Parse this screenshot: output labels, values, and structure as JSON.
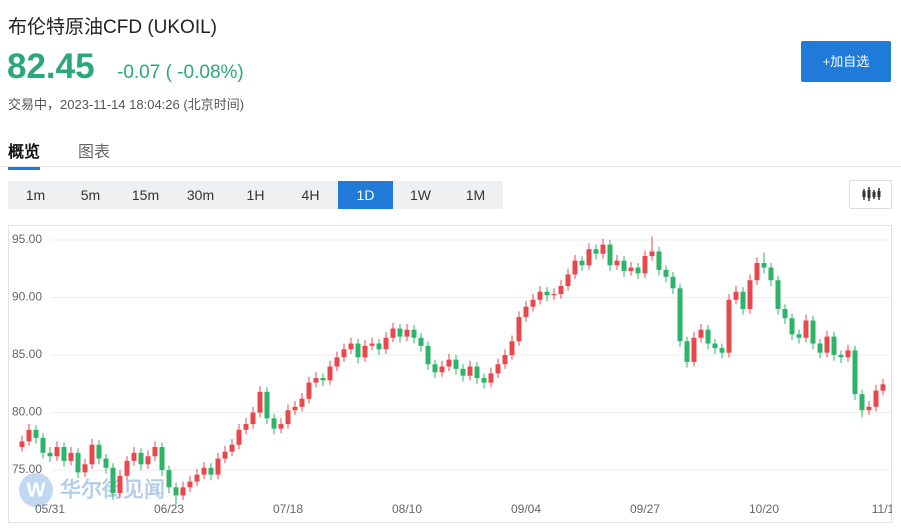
{
  "header": {
    "title": "布伦特原油CFD  (UKOIL)",
    "price": "82.45",
    "change": "-0.07",
    "change_pct": "( -0.08%)",
    "status": "交易中，2023-11-14 18:04:26 (北京时间)",
    "watch_button": "+加自选"
  },
  "tabs": [
    "概览",
    "图表"
  ],
  "periods": [
    "1m",
    "5m",
    "15m",
    "30m",
    "1H",
    "4H",
    "1D",
    "1W",
    "1M"
  ],
  "active_period": 6,
  "watermark": "华尔街见闻",
  "chart_data": {
    "type": "candlestick",
    "up_color": "#e8474c",
    "down_color": "#2db46a",
    "grid": true,
    "ylim": [
      70.4,
      96.3
    ],
    "yticks": [
      {
        "value": 95,
        "label": "95.00"
      },
      {
        "value": 90,
        "label": "90.00"
      },
      {
        "value": 85,
        "label": "85.00"
      },
      {
        "value": 80,
        "label": "80.00"
      },
      {
        "value": 75,
        "label": "75.00"
      }
    ],
    "categories": [
      null,
      null,
      null,
      null,
      "05/31",
      null,
      null,
      null,
      null,
      null,
      null,
      null,
      null,
      null,
      null,
      null,
      null,
      null,
      null,
      null,
      null,
      "06/23",
      null,
      null,
      null,
      null,
      null,
      null,
      null,
      null,
      null,
      null,
      null,
      null,
      null,
      null,
      null,
      null,
      "07/18",
      null,
      null,
      null,
      null,
      null,
      null,
      null,
      null,
      null,
      null,
      null,
      null,
      null,
      null,
      null,
      null,
      "08/10",
      null,
      null,
      null,
      null,
      null,
      null,
      null,
      null,
      null,
      null,
      null,
      null,
      null,
      null,
      null,
      null,
      "09/04",
      null,
      null,
      null,
      null,
      null,
      null,
      null,
      null,
      null,
      null,
      null,
      null,
      null,
      null,
      null,
      null,
      "09/27",
      null,
      null,
      null,
      null,
      null,
      null,
      null,
      null,
      null,
      null,
      null,
      null,
      null,
      null,
      null,
      null,
      "10/20",
      null,
      null,
      null,
      null,
      null,
      null,
      null,
      null,
      null,
      null,
      null,
      null,
      null,
      null,
      null,
      null,
      "11/1"
    ],
    "open": [
      77.0,
      77.5,
      78.5,
      77.8,
      76.5,
      76.2,
      77.0,
      75.8,
      76.5,
      74.8,
      75.5,
      77.2,
      76.0,
      75.2,
      73.0,
      74.5,
      75.8,
      76.5,
      75.5,
      76.2,
      77.0,
      75.0,
      73.5,
      72.8,
      73.5,
      74.0,
      74.6,
      75.2,
      74.6,
      76.0,
      76.6,
      77.2,
      78.5,
      79.0,
      80.0,
      81.8,
      79.5,
      78.6,
      79.0,
      80.2,
      80.5,
      81.2,
      82.6,
      83.0,
      82.8,
      84.0,
      84.8,
      85.5,
      86.0,
      84.8,
      85.8,
      86.0,
      85.5,
      86.5,
      87.3,
      86.6,
      87.2,
      86.5,
      85.8,
      84.2,
      83.5,
      84.0,
      84.6,
      83.8,
      83.2,
      84.0,
      83.0,
      82.6,
      83.4,
      84.2,
      85.0,
      86.2,
      88.3,
      89.2,
      89.8,
      90.5,
      90.2,
      90.3,
      91.0,
      92.0,
      93.2,
      92.8,
      94.2,
      93.8,
      94.6,
      92.8,
      93.2,
      92.3,
      92.6,
      92.1,
      93.6,
      94.0,
      92.4,
      91.8,
      90.8,
      86.2,
      84.4,
      86.5,
      87.2,
      86.0,
      85.6,
      85.2,
      89.8,
      90.5,
      89.0,
      91.5,
      93.0,
      92.6,
      91.5,
      89.0,
      88.2,
      86.8,
      86.5,
      88.0,
      86.0,
      85.2,
      86.6,
      85.0,
      84.8,
      85.4,
      81.6,
      80.2,
      80.5,
      81.9
    ],
    "high": [
      78.0,
      79.0,
      78.9,
      78.2,
      77.0,
      77.5,
      77.4,
      77.0,
      76.9,
      76.0,
      77.7,
      77.6,
      76.4,
      75.6,
      75.0,
      76.2,
      77.0,
      76.9,
      76.7,
      77.5,
      77.4,
      75.4,
      73.9,
      74.0,
      74.5,
      75.1,
      75.7,
      75.6,
      76.5,
      77.1,
      77.7,
      79.0,
      79.5,
      80.5,
      82.3,
      82.2,
      79.9,
      79.5,
      80.7,
      81.0,
      81.7,
      83.1,
      83.5,
      83.4,
      84.5,
      85.3,
      86.0,
      86.5,
      86.4,
      86.3,
      86.5,
      86.4,
      87.0,
      87.8,
      87.7,
      87.7,
      87.6,
      86.9,
      86.2,
      84.6,
      84.5,
      85.1,
      85.0,
      84.2,
      84.5,
      84.4,
      83.4,
      83.9,
      84.7,
      85.5,
      86.7,
      88.8,
      89.7,
      90.3,
      91.0,
      90.9,
      90.8,
      91.5,
      92.5,
      93.7,
      93.6,
      94.7,
      94.6,
      95.1,
      95.0,
      93.7,
      93.6,
      93.1,
      93.0,
      94.1,
      95.3,
      94.4,
      92.8,
      92.2,
      91.2,
      86.6,
      87.0,
      87.7,
      87.6,
      86.4,
      86.0,
      90.3,
      91.0,
      90.9,
      92.0,
      93.5,
      93.9,
      93.0,
      91.9,
      89.4,
      88.6,
      87.2,
      88.5,
      88.4,
      86.4,
      87.1,
      87.0,
      85.4,
      85.9,
      85.8,
      82.0,
      81.0,
      82.4,
      82.9
    ],
    "low": [
      76.6,
      77.1,
      77.3,
      76.0,
      75.7,
      75.8,
      75.3,
      75.4,
      74.3,
      74.4,
      75.1,
      75.5,
      74.7,
      72.4,
      72.6,
      74.1,
      75.4,
      75.0,
      75.1,
      75.8,
      74.5,
      73.0,
      72.0,
      72.4,
      73.1,
      73.6,
      74.2,
      74.1,
      74.2,
      75.6,
      76.2,
      76.8,
      78.1,
      78.6,
      79.6,
      79.0,
      78.1,
      78.2,
      78.6,
      79.8,
      80.1,
      80.8,
      82.2,
      82.3,
      82.4,
      83.6,
      84.4,
      85.1,
      84.3,
      84.4,
      85.4,
      85.0,
      85.1,
      86.1,
      86.1,
      86.2,
      86.0,
      85.3,
      83.7,
      83.0,
      83.1,
      83.6,
      83.3,
      82.7,
      82.8,
      82.5,
      82.1,
      82.2,
      83.0,
      83.8,
      84.6,
      85.8,
      87.9,
      88.8,
      89.4,
      89.7,
      89.8,
      89.9,
      90.6,
      91.6,
      92.3,
      92.4,
      93.3,
      93.4,
      92.3,
      92.4,
      91.8,
      91.9,
      91.6,
      91.7,
      93.2,
      91.9,
      91.3,
      90.3,
      85.7,
      83.9,
      84.0,
      86.1,
      85.5,
      85.1,
      84.7,
      84.8,
      89.4,
      88.5,
      88.6,
      91.1,
      92.1,
      91.0,
      88.5,
      87.7,
      86.3,
      86.0,
      86.1,
      85.5,
      84.7,
      84.8,
      84.5,
      84.3,
      84.4,
      81.1,
      79.6,
      79.8,
      80.1,
      81.5
    ],
    "close": [
      77.5,
      78.5,
      77.8,
      76.5,
      76.2,
      77.0,
      75.8,
      76.5,
      74.8,
      75.5,
      77.2,
      76.0,
      75.2,
      73.0,
      74.5,
      75.8,
      76.5,
      75.5,
      76.2,
      77.0,
      75.0,
      73.5,
      72.8,
      73.5,
      74.0,
      74.6,
      75.2,
      74.6,
      76.0,
      76.6,
      77.2,
      78.5,
      79.0,
      80.0,
      81.8,
      79.5,
      78.6,
      79.0,
      80.2,
      80.5,
      81.2,
      82.6,
      83.0,
      82.8,
      84.0,
      84.8,
      85.5,
      86.0,
      84.8,
      85.8,
      86.0,
      85.5,
      86.5,
      87.3,
      86.6,
      87.2,
      86.5,
      85.8,
      84.2,
      83.5,
      84.0,
      84.6,
      83.8,
      83.2,
      84.0,
      83.0,
      82.6,
      83.4,
      84.2,
      85.0,
      86.2,
      88.3,
      89.2,
      89.8,
      90.5,
      90.2,
      90.3,
      91.0,
      92.0,
      93.2,
      92.8,
      94.2,
      93.8,
      94.6,
      92.8,
      93.2,
      92.3,
      92.6,
      92.1,
      93.6,
      94.0,
      92.4,
      91.8,
      90.8,
      86.2,
      84.4,
      86.5,
      87.2,
      86.0,
      85.6,
      85.2,
      89.8,
      90.5,
      89.0,
      91.5,
      93.0,
      92.6,
      91.5,
      89.0,
      88.2,
      86.8,
      86.5,
      88.0,
      86.0,
      85.2,
      86.6,
      85.0,
      84.8,
      85.4,
      81.6,
      80.2,
      80.5,
      81.9,
      82.45
    ]
  }
}
